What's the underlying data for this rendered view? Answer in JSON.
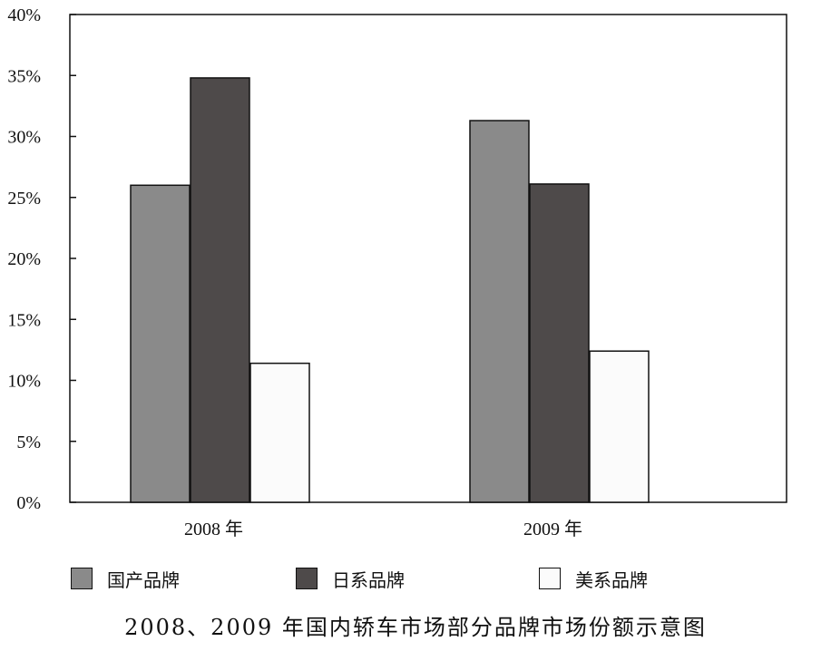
{
  "chart_data": {
    "type": "bar",
    "title": "2008、2009 年国内轿车市场部分品牌市场份额示意图",
    "categories": [
      "2008 年",
      "2009 年"
    ],
    "series": [
      {
        "name": "国产品牌",
        "values": [
          26,
          31.3
        ],
        "color": "#8a8a8a"
      },
      {
        "name": "日系品牌",
        "values": [
          34.8,
          26.1
        ],
        "color": "#4e4a4a"
      },
      {
        "name": "美系品牌",
        "values": [
          11.4,
          12.4
        ],
        "color": "#fbfbfb"
      }
    ],
    "ylim": [
      0,
      40
    ],
    "yticks": [
      "0%",
      "5%",
      "10%",
      "15%",
      "20%",
      "25%",
      "30%",
      "35%",
      "40%"
    ],
    "xlabel": "",
    "ylabel": "",
    "grid": false,
    "legend_position": "bottom"
  }
}
